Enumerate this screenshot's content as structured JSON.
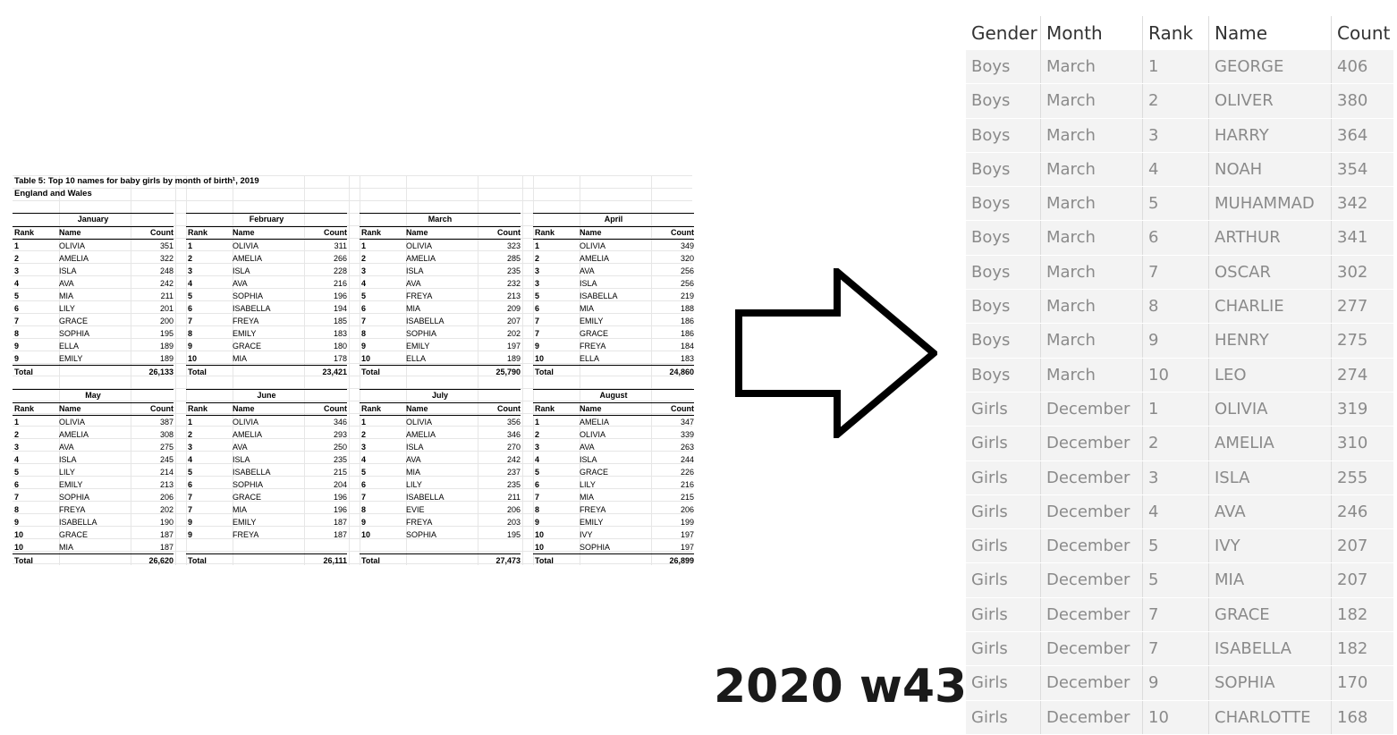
{
  "source_table": {
    "title": "Table 5: Top 10 names for baby girls by month of birth¹, 2019",
    "subtitle": "England and Wales",
    "headers": {
      "rank": "Rank",
      "name": "Name",
      "count": "Count"
    },
    "total_label": "Total",
    "months": [
      {
        "month": "January",
        "rows": [
          [
            "1",
            "OLIVIA",
            "351"
          ],
          [
            "2",
            "AMELIA",
            "322"
          ],
          [
            "3",
            "ISLA",
            "248"
          ],
          [
            "4",
            "AVA",
            "242"
          ],
          [
            "5",
            "MIA",
            "211"
          ],
          [
            "6",
            "LILY",
            "201"
          ],
          [
            "7",
            "GRACE",
            "200"
          ],
          [
            "8",
            "SOPHIA",
            "195"
          ],
          [
            "9",
            "ELLA",
            "189"
          ],
          [
            "9",
            "EMILY",
            "189"
          ]
        ],
        "total": "26,133"
      },
      {
        "month": "February",
        "rows": [
          [
            "1",
            "OLIVIA",
            "311"
          ],
          [
            "2",
            "AMELIA",
            "266"
          ],
          [
            "3",
            "ISLA",
            "228"
          ],
          [
            "4",
            "AVA",
            "216"
          ],
          [
            "5",
            "SOPHIA",
            "196"
          ],
          [
            "6",
            "ISABELLA",
            "194"
          ],
          [
            "7",
            "FREYA",
            "185"
          ],
          [
            "8",
            "EMILY",
            "183"
          ],
          [
            "9",
            "GRACE",
            "180"
          ],
          [
            "10",
            "MIA",
            "178"
          ]
        ],
        "total": "23,421"
      },
      {
        "month": "March",
        "rows": [
          [
            "1",
            "OLIVIA",
            "323"
          ],
          [
            "2",
            "AMELIA",
            "285"
          ],
          [
            "3",
            "ISLA",
            "235"
          ],
          [
            "4",
            "AVA",
            "232"
          ],
          [
            "5",
            "FREYA",
            "213"
          ],
          [
            "6",
            "MIA",
            "209"
          ],
          [
            "7",
            "ISABELLA",
            "207"
          ],
          [
            "8",
            "SOPHIA",
            "202"
          ],
          [
            "9",
            "EMILY",
            "197"
          ],
          [
            "10",
            "ELLA",
            "189"
          ]
        ],
        "total": "25,790"
      },
      {
        "month": "April",
        "rows": [
          [
            "1",
            "OLIVIA",
            "349"
          ],
          [
            "2",
            "AMELIA",
            "320"
          ],
          [
            "3",
            "AVA",
            "256"
          ],
          [
            "3",
            "ISLA",
            "256"
          ],
          [
            "5",
            "ISABELLA",
            "219"
          ],
          [
            "6",
            "MIA",
            "188"
          ],
          [
            "7",
            "EMILY",
            "186"
          ],
          [
            "7",
            "GRACE",
            "186"
          ],
          [
            "9",
            "FREYA",
            "184"
          ],
          [
            "10",
            "ELLA",
            "183"
          ]
        ],
        "total": "24,860"
      },
      {
        "month": "May",
        "rows": [
          [
            "1",
            "OLIVIA",
            "387"
          ],
          [
            "2",
            "AMELIA",
            "308"
          ],
          [
            "3",
            "AVA",
            "275"
          ],
          [
            "4",
            "ISLA",
            "245"
          ],
          [
            "5",
            "LILY",
            "214"
          ],
          [
            "6",
            "EMILY",
            "213"
          ],
          [
            "7",
            "SOPHIA",
            "206"
          ],
          [
            "8",
            "FREYA",
            "202"
          ],
          [
            "9",
            "ISABELLA",
            "190"
          ],
          [
            "10",
            "GRACE",
            "187"
          ],
          [
            "10",
            "MIA",
            "187"
          ]
        ],
        "total": "26,620"
      },
      {
        "month": "June",
        "rows": [
          [
            "1",
            "OLIVIA",
            "346"
          ],
          [
            "2",
            "AMELIA",
            "293"
          ],
          [
            "3",
            "AVA",
            "250"
          ],
          [
            "4",
            "ISLA",
            "235"
          ],
          [
            "5",
            "ISABELLA",
            "215"
          ],
          [
            "6",
            "SOPHIA",
            "204"
          ],
          [
            "7",
            "GRACE",
            "196"
          ],
          [
            "7",
            "MIA",
            "196"
          ],
          [
            "9",
            "EMILY",
            "187"
          ],
          [
            "9",
            "FREYA",
            "187"
          ],
          [
            "",
            "",
            ""
          ]
        ],
        "total": "26,111"
      },
      {
        "month": "July",
        "rows": [
          [
            "1",
            "OLIVIA",
            "356"
          ],
          [
            "2",
            "AMELIA",
            "346"
          ],
          [
            "3",
            "ISLA",
            "270"
          ],
          [
            "4",
            "AVA",
            "242"
          ],
          [
            "5",
            "MIA",
            "237"
          ],
          [
            "6",
            "LILY",
            "235"
          ],
          [
            "7",
            "ISABELLA",
            "211"
          ],
          [
            "8",
            "EVIE",
            "206"
          ],
          [
            "9",
            "FREYA",
            "203"
          ],
          [
            "10",
            "SOPHIA",
            "195"
          ],
          [
            "",
            "",
            ""
          ]
        ],
        "total": "27,473"
      },
      {
        "month": "August",
        "rows": [
          [
            "1",
            "AMELIA",
            "347"
          ],
          [
            "2",
            "OLIVIA",
            "339"
          ],
          [
            "3",
            "AVA",
            "263"
          ],
          [
            "4",
            "ISLA",
            "244"
          ],
          [
            "5",
            "GRACE",
            "226"
          ],
          [
            "6",
            "LILY",
            "216"
          ],
          [
            "7",
            "MIA",
            "215"
          ],
          [
            "8",
            "FREYA",
            "206"
          ],
          [
            "9",
            "EMILY",
            "199"
          ],
          [
            "10",
            "IVY",
            "197"
          ],
          [
            "10",
            "SOPHIA",
            "197"
          ]
        ],
        "total": "26,899"
      }
    ]
  },
  "caption": "2020 w43",
  "output_table": {
    "columns": [
      "Gender",
      "Month",
      "Rank",
      "Name",
      "Count"
    ],
    "rows": [
      [
        "Boys",
        "March",
        "1",
        "GEORGE",
        "406"
      ],
      [
        "Boys",
        "March",
        "2",
        "OLIVER",
        "380"
      ],
      [
        "Boys",
        "March",
        "3",
        "HARRY",
        "364"
      ],
      [
        "Boys",
        "March",
        "4",
        "NOAH",
        "354"
      ],
      [
        "Boys",
        "March",
        "5",
        "MUHAMMAD",
        "342"
      ],
      [
        "Boys",
        "March",
        "6",
        "ARTHUR",
        "341"
      ],
      [
        "Boys",
        "March",
        "7",
        "OSCAR",
        "302"
      ],
      [
        "Boys",
        "March",
        "8",
        "CHARLIE",
        "277"
      ],
      [
        "Boys",
        "March",
        "9",
        "HENRY",
        "275"
      ],
      [
        "Boys",
        "March",
        "10",
        "LEO",
        "274"
      ],
      [
        "Girls",
        "December",
        "1",
        "OLIVIA",
        "319"
      ],
      [
        "Girls",
        "December",
        "2",
        "AMELIA",
        "310"
      ],
      [
        "Girls",
        "December",
        "3",
        "ISLA",
        "255"
      ],
      [
        "Girls",
        "December",
        "4",
        "AVA",
        "246"
      ],
      [
        "Girls",
        "December",
        "5",
        "IVY",
        "207"
      ],
      [
        "Girls",
        "December",
        "5",
        "MIA",
        "207"
      ],
      [
        "Girls",
        "December",
        "7",
        "GRACE",
        "182"
      ],
      [
        "Girls",
        "December",
        "7",
        "ISABELLA",
        "182"
      ],
      [
        "Girls",
        "December",
        "9",
        "SOPHIA",
        "170"
      ],
      [
        "Girls",
        "December",
        "10",
        "CHARLOTTE",
        "168"
      ]
    ]
  }
}
